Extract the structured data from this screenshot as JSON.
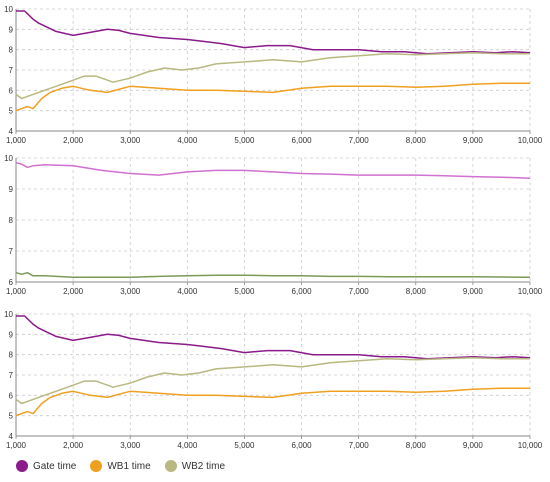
{
  "chart_data": [
    {
      "type": "line",
      "x_ticks": [
        "1,000",
        "2,000",
        "3,000",
        "4,000",
        "5,000",
        "6,000",
        "7,000",
        "8,000",
        "9,000",
        "10,000"
      ],
      "y_ticks": [
        "4",
        "5",
        "6",
        "7",
        "8",
        "9",
        "10"
      ],
      "xlim": [
        1000,
        10000
      ],
      "ylim": [
        4,
        10
      ],
      "grid": true,
      "series": [
        {
          "name": "Gate time",
          "color": "#8b1a8b",
          "x": [
            1000,
            1150,
            1300,
            1400,
            1550,
            1700,
            2000,
            2300,
            2600,
            2800,
            3000,
            3500,
            4000,
            4300,
            4600,
            5000,
            5400,
            5800,
            6200,
            6600,
            7000,
            7400,
            7800,
            8200,
            8600,
            9000,
            9400,
            9700,
            10000
          ],
          "y": [
            9.9,
            9.9,
            9.5,
            9.3,
            9.1,
            8.9,
            8.7,
            8.85,
            9.0,
            8.95,
            8.8,
            8.6,
            8.5,
            8.4,
            8.3,
            8.1,
            8.2,
            8.2,
            8.0,
            8.0,
            8.0,
            7.9,
            7.9,
            7.8,
            7.85,
            7.9,
            7.85,
            7.9,
            7.85
          ]
        },
        {
          "name": "WB1 time",
          "color": "#f0a020",
          "x": [
            1000,
            1100,
            1200,
            1300,
            1450,
            1600,
            1800,
            2000,
            2300,
            2600,
            3000,
            3500,
            4000,
            4500,
            5000,
            5500,
            6000,
            6500,
            7000,
            7500,
            8000,
            8500,
            9000,
            9500,
            10000
          ],
          "y": [
            5.0,
            5.1,
            5.2,
            5.1,
            5.6,
            5.9,
            6.1,
            6.2,
            6.0,
            5.9,
            6.2,
            6.1,
            6.0,
            6.0,
            5.95,
            5.9,
            6.1,
            6.2,
            6.2,
            6.2,
            6.15,
            6.2,
            6.3,
            6.35,
            6.35
          ]
        },
        {
          "name": "WB2 time",
          "color": "#b8b880",
          "x": [
            1000,
            1100,
            1200,
            1300,
            1500,
            1700,
            2000,
            2200,
            2400,
            2700,
            3000,
            3300,
            3600,
            3900,
            4200,
            4500,
            5000,
            5500,
            6000,
            6500,
            7000,
            7500,
            8000,
            8500,
            9000,
            9500,
            10000
          ],
          "y": [
            5.8,
            5.6,
            5.7,
            5.8,
            6.0,
            6.2,
            6.5,
            6.7,
            6.7,
            6.4,
            6.6,
            6.9,
            7.1,
            7.0,
            7.1,
            7.3,
            7.4,
            7.5,
            7.4,
            7.6,
            7.7,
            7.8,
            7.75,
            7.8,
            7.85,
            7.8,
            7.8
          ]
        }
      ]
    },
    {
      "type": "line",
      "x_ticks": [
        "1,000",
        "2,000",
        "3,000",
        "4,000",
        "5,000",
        "6,000",
        "7,000",
        "8,000",
        "9,000",
        "10,000"
      ],
      "y_ticks": [
        "6",
        "7",
        "8",
        "9",
        "10"
      ],
      "xlim": [
        1000,
        10000
      ],
      "ylim": [
        6,
        10
      ],
      "grid": true,
      "series": [
        {
          "name": "Gate time",
          "color": "#d070d0",
          "x": [
            1000,
            1100,
            1200,
            1300,
            1500,
            2000,
            2500,
            3000,
            3500,
            4000,
            4500,
            5000,
            5500,
            6000,
            6500,
            7000,
            7500,
            8000,
            8500,
            9000,
            9500,
            10000
          ],
          "y": [
            9.85,
            9.8,
            9.7,
            9.75,
            9.78,
            9.75,
            9.6,
            9.5,
            9.45,
            9.55,
            9.6,
            9.6,
            9.55,
            9.5,
            9.48,
            9.45,
            9.45,
            9.45,
            9.43,
            9.4,
            9.38,
            9.35
          ]
        },
        {
          "name": "WB2 time",
          "color": "#7a9a5a",
          "x": [
            1000,
            1100,
            1200,
            1300,
            1500,
            2000,
            2500,
            3000,
            3500,
            4000,
            4500,
            5000,
            5500,
            6000,
            6500,
            7000,
            7500,
            8000,
            8500,
            9000,
            9500,
            10000
          ],
          "y": [
            6.3,
            6.25,
            6.3,
            6.2,
            6.2,
            6.15,
            6.15,
            6.15,
            6.18,
            6.2,
            6.22,
            6.22,
            6.2,
            6.2,
            6.18,
            6.18,
            6.17,
            6.17,
            6.17,
            6.17,
            6.16,
            6.15
          ]
        }
      ]
    },
    {
      "type": "line",
      "x_ticks": [
        "1,000",
        "2,000",
        "3,000",
        "4,000",
        "5,000",
        "6,000",
        "7,000",
        "8,000",
        "9,000",
        "10,000"
      ],
      "y_ticks": [
        "4",
        "5",
        "6",
        "7",
        "8",
        "9",
        "10"
      ],
      "xlim": [
        1000,
        10000
      ],
      "ylim": [
        4,
        10
      ],
      "grid": true,
      "series": [
        {
          "name": "Gate time",
          "color": "#8b1a8b",
          "x": [
            1000,
            1150,
            1300,
            1400,
            1550,
            1700,
            2000,
            2300,
            2600,
            2800,
            3000,
            3500,
            4000,
            4300,
            4600,
            5000,
            5400,
            5800,
            6200,
            6600,
            7000,
            7400,
            7800,
            8200,
            8600,
            9000,
            9400,
            9700,
            10000
          ],
          "y": [
            9.9,
            9.9,
            9.5,
            9.3,
            9.1,
            8.9,
            8.7,
            8.85,
            9.0,
            8.95,
            8.8,
            8.6,
            8.5,
            8.4,
            8.3,
            8.1,
            8.2,
            8.2,
            8.0,
            8.0,
            8.0,
            7.9,
            7.9,
            7.8,
            7.85,
            7.9,
            7.85,
            7.9,
            7.85
          ]
        },
        {
          "name": "WB1 time",
          "color": "#f0a020",
          "x": [
            1000,
            1100,
            1200,
            1300,
            1450,
            1600,
            1800,
            2000,
            2300,
            2600,
            3000,
            3500,
            4000,
            4500,
            5000,
            5500,
            6000,
            6500,
            7000,
            7500,
            8000,
            8500,
            9000,
            9500,
            10000
          ],
          "y": [
            5.0,
            5.1,
            5.2,
            5.1,
            5.6,
            5.9,
            6.1,
            6.2,
            6.0,
            5.9,
            6.2,
            6.1,
            6.0,
            6.0,
            5.95,
            5.9,
            6.1,
            6.2,
            6.2,
            6.2,
            6.15,
            6.2,
            6.3,
            6.35,
            6.35
          ]
        },
        {
          "name": "WB2 time",
          "color": "#b8b880",
          "x": [
            1000,
            1100,
            1200,
            1300,
            1500,
            1700,
            2000,
            2200,
            2400,
            2700,
            3000,
            3300,
            3600,
            3900,
            4200,
            4500,
            5000,
            5500,
            6000,
            6500,
            7000,
            7500,
            8000,
            8500,
            9000,
            9500,
            10000
          ],
          "y": [
            5.8,
            5.6,
            5.7,
            5.8,
            6.0,
            6.2,
            6.5,
            6.7,
            6.7,
            6.4,
            6.6,
            6.9,
            7.1,
            7.0,
            7.1,
            7.3,
            7.4,
            7.5,
            7.4,
            7.6,
            7.7,
            7.8,
            7.75,
            7.8,
            7.85,
            7.8,
            7.8
          ]
        }
      ]
    }
  ],
  "legend": [
    {
      "label": "Gate time",
      "color": "#8b1a8b"
    },
    {
      "label": "WB1 time",
      "color": "#f0a020"
    },
    {
      "label": "WB2 time",
      "color": "#b8b880"
    }
  ]
}
